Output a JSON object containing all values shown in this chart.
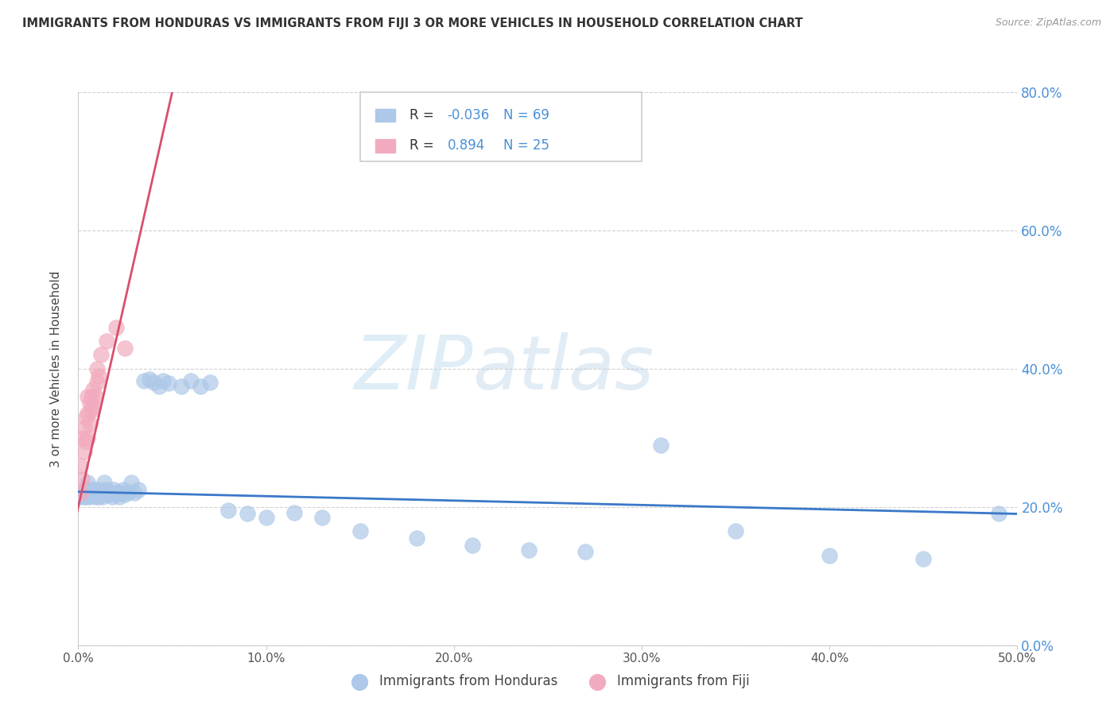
{
  "title": "IMMIGRANTS FROM HONDURAS VS IMMIGRANTS FROM FIJI 3 OR MORE VEHICLES IN HOUSEHOLD CORRELATION CHART",
  "source": "Source: ZipAtlas.com",
  "ylabel": "3 or more Vehicles in Household",
  "xlim": [
    0.0,
    0.5
  ],
  "ylim": [
    0.0,
    0.8
  ],
  "xticks": [
    0.0,
    0.1,
    0.2,
    0.3,
    0.4,
    0.5
  ],
  "yticks": [
    0.0,
    0.2,
    0.4,
    0.6,
    0.8
  ],
  "xtick_labels": [
    "0.0%",
    "10.0%",
    "20.0%",
    "30.0%",
    "40.0%",
    "50.0%"
  ],
  "ytick_labels": [
    "0.0%",
    "20.0%",
    "40.0%",
    "60.0%",
    "80.0%"
  ],
  "honduras_R": -0.036,
  "honduras_N": 69,
  "fiji_R": 0.894,
  "fiji_N": 25,
  "honduras_color": "#adc8e8",
  "fiji_color": "#f2abbe",
  "honduras_line_color": "#3a78c9",
  "fiji_line_color": "#d94f6e",
  "watermark_zip": "ZIP",
  "watermark_atlas": "atlas",
  "honduras_x": [
    0.001,
    0.002,
    0.003,
    0.003,
    0.004,
    0.004,
    0.005,
    0.005,
    0.005,
    0.006,
    0.006,
    0.006,
    0.007,
    0.007,
    0.008,
    0.008,
    0.009,
    0.009,
    0.009,
    0.01,
    0.01,
    0.011,
    0.011,
    0.012,
    0.012,
    0.013,
    0.013,
    0.014,
    0.015,
    0.015,
    0.016,
    0.017,
    0.018,
    0.019,
    0.02,
    0.021,
    0.022,
    0.023,
    0.024,
    0.025,
    0.027,
    0.028,
    0.03,
    0.032,
    0.035,
    0.038,
    0.04,
    0.043,
    0.045,
    0.048,
    0.055,
    0.06,
    0.065,
    0.07,
    0.08,
    0.09,
    0.1,
    0.115,
    0.13,
    0.15,
    0.18,
    0.21,
    0.24,
    0.27,
    0.31,
    0.35,
    0.4,
    0.45,
    0.49
  ],
  "honduras_y": [
    0.215,
    0.22,
    0.215,
    0.225,
    0.22,
    0.215,
    0.235,
    0.225,
    0.22,
    0.218,
    0.215,
    0.222,
    0.22,
    0.225,
    0.218,
    0.222,
    0.215,
    0.22,
    0.225,
    0.218,
    0.222,
    0.215,
    0.22,
    0.225,
    0.218,
    0.222,
    0.215,
    0.235,
    0.22,
    0.225,
    0.218,
    0.22,
    0.215,
    0.225,
    0.218,
    0.222,
    0.215,
    0.22,
    0.225,
    0.218,
    0.222,
    0.235,
    0.22,
    0.225,
    0.382,
    0.385,
    0.38,
    0.375,
    0.382,
    0.379,
    0.375,
    0.382,
    0.375,
    0.38,
    0.195,
    0.19,
    0.185,
    0.192,
    0.185,
    0.165,
    0.155,
    0.145,
    0.138,
    0.135,
    0.29,
    0.165,
    0.13,
    0.125,
    0.19
  ],
  "fiji_x": [
    0.001,
    0.001,
    0.002,
    0.002,
    0.003,
    0.003,
    0.004,
    0.004,
    0.005,
    0.005,
    0.005,
    0.006,
    0.006,
    0.007,
    0.007,
    0.008,
    0.008,
    0.009,
    0.01,
    0.01,
    0.011,
    0.012,
    0.015,
    0.02,
    0.025
  ],
  "fiji_y": [
    0.22,
    0.26,
    0.24,
    0.3,
    0.28,
    0.315,
    0.295,
    0.33,
    0.3,
    0.335,
    0.36,
    0.32,
    0.35,
    0.34,
    0.36,
    0.345,
    0.37,
    0.36,
    0.38,
    0.4,
    0.39,
    0.42,
    0.44,
    0.46,
    0.43
  ]
}
